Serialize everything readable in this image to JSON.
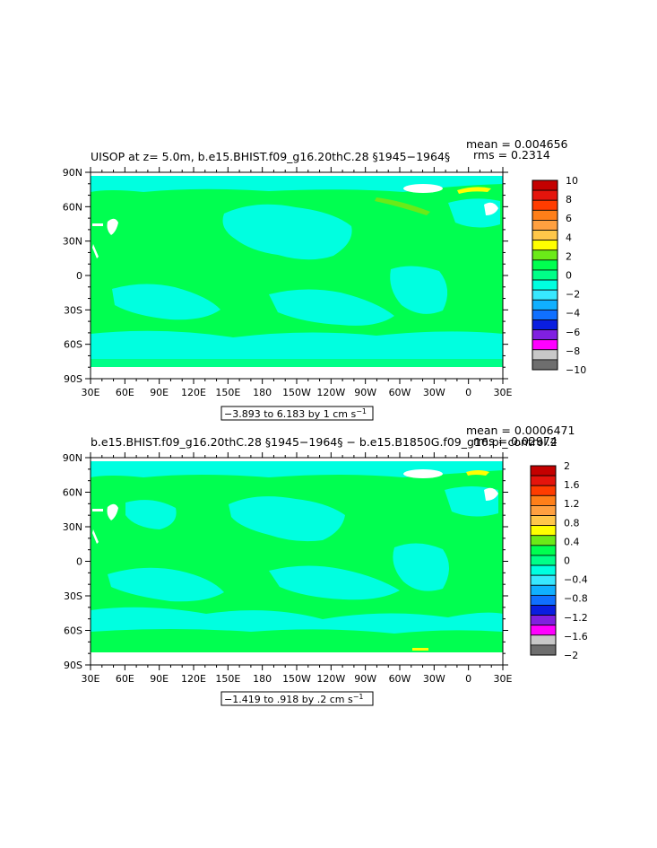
{
  "chart_data": [
    {
      "type": "heatmap",
      "title": "UISOP at z=    5.0m, b.e15.BHIST.f09_g16.20thC.28 §1945−1964§",
      "stats": {
        "mean": "mean = 0.004656",
        "rms": "rms = 0.2314"
      },
      "range_label": "−3.893 to 6.183 by 1 cm s",
      "range_superscript": "−1",
      "x_ticks": [
        "30E",
        "60E",
        "90E",
        "120E",
        "150E",
        "180",
        "150W",
        "120W",
        "90W",
        "60W",
        "30W",
        "0",
        "30E"
      ],
      "y_ticks": [
        "90N",
        "60N",
        "30N",
        "0",
        "30S",
        "60S",
        "90S"
      ],
      "xlim": [
        30,
        390
      ],
      "ylim": [
        -90,
        90
      ],
      "colorbar": {
        "labels": [
          "10",
          "8",
          "6",
          "4",
          "2",
          "0",
          "−2",
          "−4",
          "−6",
          "−8",
          "−10"
        ],
        "colors": [
          "#c40000",
          "#e4140c",
          "#ff3c00",
          "#ff7f19",
          "#ffa040",
          "#ffc74a",
          "#ffff00",
          "#6bea18",
          "#00ff50",
          "#00ff88",
          "#00ffe0",
          "#38e8ff",
          "#10b0ff",
          "#1070ff",
          "#0a1ee0",
          "#8020e0",
          "#ff00ff",
          "#c8c8c8",
          "#6e6e6e"
        ],
        "note": ""
      }
    },
    {
      "type": "heatmap",
      "title": "b.e15.BHIST.f09_g16.20thC.28 §1945−1964§ − b.e15.B1850G.f09_g16.pi_control.2",
      "stats": {
        "mean": "mean = 0.0006471",
        "rms": "rms = 0.02974"
      },
      "range_label": "−1.419 to .918 by .2 cm s",
      "range_superscript": "−1",
      "x_ticks": [
        "30E",
        "60E",
        "90E",
        "120E",
        "150E",
        "180",
        "150W",
        "120W",
        "90W",
        "60W",
        "30W",
        "0",
        "30E"
      ],
      "y_ticks": [
        "90N",
        "60N",
        "30N",
        "0",
        "30S",
        "60S",
        "90S"
      ],
      "xlim": [
        30,
        390
      ],
      "ylim": [
        -90,
        90
      ],
      "colorbar": {
        "labels": [
          "2",
          "1.6",
          "1.2",
          "0.8",
          "0.4",
          "0",
          "−0.4",
          "−0.8",
          "−1.2",
          "−1.6",
          "−2"
        ],
        "colors": [
          "#c40000",
          "#e4140c",
          "#ff3c00",
          "#ff7f19",
          "#ffa040",
          "#ffc74a",
          "#ffff00",
          "#6bea18",
          "#00ff50",
          "#00ff88",
          "#00ffe0",
          "#38e8ff",
          "#10b0ff",
          "#1070ff",
          "#0a1ee0",
          "#8020e0",
          "#ff00ff",
          "#c8c8c8",
          "#6e6e6e"
        ]
      }
    }
  ]
}
